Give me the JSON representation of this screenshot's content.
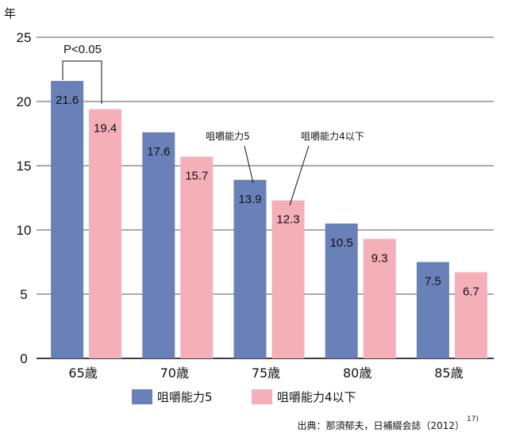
{
  "chart_data": {
    "type": "bar",
    "y_unit_label": "年",
    "categories": [
      "65歳",
      "70歳",
      "75歳",
      "80歳",
      "85歳"
    ],
    "series": [
      {
        "name": "咀嚼能力5",
        "color": "#6a80b9",
        "values": [
          21.6,
          17.6,
          13.9,
          10.5,
          7.5
        ]
      },
      {
        "name": "咀嚼能力4以下",
        "color": "#f4afb8",
        "values": [
          19.4,
          15.7,
          12.3,
          9.3,
          6.7
        ]
      }
    ],
    "ylim": [
      0,
      25
    ],
    "yticks": [
      0,
      5,
      10,
      15,
      20,
      25
    ],
    "grid": true,
    "legend_position": "bottom",
    "annotations": {
      "significance": "P<0.05",
      "series1_callout": "咀嚼能力5",
      "series2_callout": "咀嚼能力4以下"
    },
    "source": {
      "text": "出典：那須郁夫，日補綴会誌（2012）",
      "ref": "17)"
    }
  }
}
